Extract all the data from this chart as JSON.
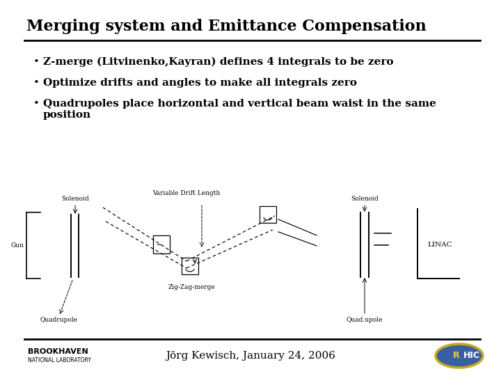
{
  "title": "Merging system and Emittance Compensation",
  "bullets": [
    "Z-merge (Litvinenko,Kayran) defines 4 integrals to be zero",
    "Optimize drifts and angles to make all integrals zero",
    "Quadrupoles place horizontal and vertical beam waist in the same position"
  ],
  "footer_text": "Jörg Kewisch, January 24, 2006",
  "bg_color": "#ffffff",
  "title_fontsize": 16,
  "bullet_fontsize": 11,
  "diagram_label_fontsize": 6.5,
  "footer_fontsize": 11
}
